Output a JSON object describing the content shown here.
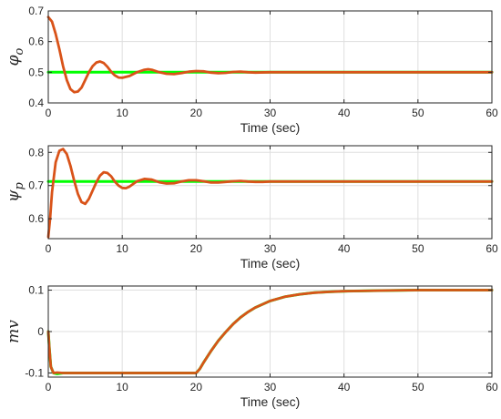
{
  "chart_data": [
    {
      "type": "line",
      "ylabel": "φo",
      "xlabel": "Time (sec)",
      "xlim": [
        0,
        60
      ],
      "ylim": [
        0.4,
        0.7
      ],
      "xticks": [
        0,
        10,
        20,
        30,
        40,
        50,
        60
      ],
      "yticks": [
        0.4,
        0.5,
        0.6,
        0.7
      ],
      "yticklabels": [
        "0.4",
        "0.5",
        "0.6",
        "0.7"
      ],
      "grid": true,
      "series": [
        {
          "color": "#00ff00",
          "x": [
            0,
            60
          ],
          "y": [
            0.5,
            0.5
          ]
        },
        {
          "color": "#d95319",
          "x": [
            0,
            0.5,
            1,
            1.5,
            2,
            2.5,
            3,
            3.5,
            4,
            4.5,
            5,
            5.5,
            6,
            6.5,
            7,
            7.5,
            8,
            8.5,
            9,
            9.5,
            10,
            11,
            12,
            13,
            13.5,
            14,
            15,
            16,
            17,
            18,
            19,
            20,
            21,
            22,
            23,
            24,
            25,
            26,
            27,
            28,
            30,
            32,
            35,
            40,
            45,
            50,
            55,
            60
          ],
          "y": [
            0.68,
            0.665,
            0.625,
            0.575,
            0.52,
            0.475,
            0.445,
            0.435,
            0.437,
            0.45,
            0.475,
            0.5,
            0.52,
            0.532,
            0.535,
            0.53,
            0.518,
            0.502,
            0.49,
            0.483,
            0.482,
            0.488,
            0.5,
            0.508,
            0.51,
            0.508,
            0.5,
            0.495,
            0.494,
            0.497,
            0.502,
            0.504,
            0.503,
            0.499,
            0.497,
            0.498,
            0.501,
            0.502,
            0.5,
            0.499,
            0.5,
            0.5,
            0.5,
            0.5,
            0.5,
            0.5,
            0.5,
            0.5
          ]
        }
      ]
    },
    {
      "type": "line",
      "ylabel": "ψp",
      "xlabel": "Time (sec)",
      "xlim": [
        0,
        60
      ],
      "ylim": [
        0.54,
        0.82
      ],
      "xticks": [
        0,
        10,
        20,
        30,
        40,
        50,
        60
      ],
      "yticks": [
        0.6,
        0.7,
        0.8
      ],
      "yticklabels": [
        "0.6",
        "0.7",
        "0.8"
      ],
      "grid": true,
      "series": [
        {
          "color": "#00ff00",
          "x": [
            0,
            60
          ],
          "y": [
            0.712,
            0.712
          ]
        },
        {
          "color": "#d95319",
          "x": [
            0,
            0.25,
            0.5,
            1,
            1.5,
            2,
            2.5,
            3,
            3.5,
            4,
            4.5,
            5,
            5.5,
            6,
            6.5,
            7,
            7.5,
            8,
            8.5,
            9,
            9.5,
            10,
            10.5,
            11,
            11.5,
            12,
            13,
            14,
            15,
            16,
            17,
            18,
            19,
            20,
            21,
            22,
            23,
            24,
            25,
            26,
            27,
            28,
            29,
            30,
            32,
            35,
            40,
            45,
            50,
            55,
            60
          ],
          "y": [
            0.545,
            0.6,
            0.68,
            0.77,
            0.805,
            0.81,
            0.795,
            0.76,
            0.715,
            0.675,
            0.65,
            0.645,
            0.66,
            0.685,
            0.71,
            0.73,
            0.74,
            0.738,
            0.728,
            0.712,
            0.7,
            0.693,
            0.692,
            0.697,
            0.705,
            0.713,
            0.72,
            0.718,
            0.71,
            0.706,
            0.707,
            0.712,
            0.716,
            0.716,
            0.713,
            0.709,
            0.709,
            0.711,
            0.713,
            0.714,
            0.712,
            0.711,
            0.711,
            0.712,
            0.712,
            0.712,
            0.712,
            0.712,
            0.712,
            0.712,
            0.712
          ]
        }
      ]
    },
    {
      "type": "line",
      "ylabel": "mv",
      "xlabel": "Time (sec)",
      "xlim": [
        0,
        60
      ],
      "ylim": [
        -0.11,
        0.11
      ],
      "xticks": [
        0,
        10,
        20,
        30,
        40,
        50,
        60
      ],
      "yticks": [
        -0.1,
        0,
        0.1
      ],
      "yticklabels": [
        "-0.1",
        "0",
        "0.1"
      ],
      "grid": true,
      "series": [
        {
          "color": "#00ff00",
          "x": [
            0,
            0.15,
            0.35,
            0.7,
            1.2,
            2,
            5,
            10,
            15,
            20,
            20.5,
            21,
            22,
            23,
            24,
            25,
            26,
            27,
            28,
            30,
            32,
            34,
            36,
            38,
            40,
            45,
            50,
            55,
            60
          ],
          "y": [
            0,
            -0.04,
            -0.085,
            -0.1,
            -0.102,
            -0.1,
            -0.1,
            -0.1,
            -0.1,
            -0.1,
            -0.09,
            -0.075,
            -0.047,
            -0.022,
            -0.001,
            0.018,
            0.034,
            0.047,
            0.058,
            0.074,
            0.084,
            0.09,
            0.094,
            0.096,
            0.0975,
            0.099,
            0.1,
            0.1,
            0.1
          ]
        },
        {
          "color": "#d95319",
          "x": [
            0,
            0.15,
            0.35,
            0.7,
            1.2,
            2,
            5,
            10,
            15,
            20,
            20.5,
            21,
            22,
            23,
            24,
            25,
            26,
            27,
            28,
            30,
            32,
            34,
            36,
            38,
            40,
            45,
            50,
            55,
            60
          ],
          "y": [
            0,
            -0.04,
            -0.085,
            -0.1,
            -0.099,
            -0.1,
            -0.1,
            -0.1,
            -0.1,
            -0.1,
            -0.09,
            -0.075,
            -0.047,
            -0.022,
            -0.001,
            0.018,
            0.034,
            0.047,
            0.058,
            0.074,
            0.084,
            0.09,
            0.094,
            0.096,
            0.0975,
            0.099,
            0.1,
            0.1,
            0.1
          ]
        }
      ]
    }
  ]
}
